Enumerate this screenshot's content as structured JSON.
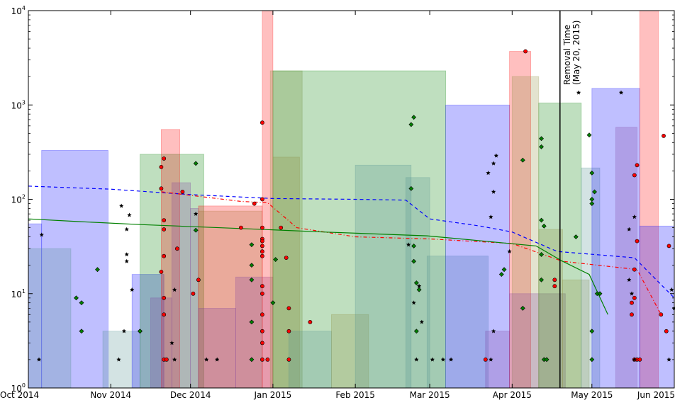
{
  "chart_data": {
    "type": "bar",
    "title": "",
    "xlabel": "",
    "ylabel": "",
    "yscale": "log",
    "ylim": [
      1,
      10000
    ],
    "xlim": [
      "2014-10-01",
      "2015-06-01"
    ],
    "grid": false,
    "y_ticks": [
      {
        "base": "10",
        "exp": "0",
        "value": 1
      },
      {
        "base": "10",
        "exp": "1",
        "value": 10
      },
      {
        "base": "10",
        "exp": "2",
        "value": 100
      },
      {
        "base": "10",
        "exp": "3",
        "value": 1000
      },
      {
        "base": "10",
        "exp": "4",
        "value": 10000
      }
    ],
    "x_ticks": [
      {
        "label": "Oct 2014",
        "date": "2014-10-01"
      },
      {
        "label": "Nov 2014",
        "date": "2014-11-01"
      },
      {
        "label": "Dec 2014",
        "date": "2014-12-01"
      },
      {
        "label": "Jan 2015",
        "date": "2015-01-01"
      },
      {
        "label": "Feb 2015",
        "date": "2015-02-01"
      },
      {
        "label": "Mar 2015",
        "date": "2015-03-01"
      },
      {
        "label": "Apr 2015",
        "date": "2015-04-01"
      },
      {
        "label": "May 2015",
        "date": "2015-05-01"
      },
      {
        "label": "Jun 2015",
        "date": "2015-06-01"
      }
    ],
    "annotation": {
      "date": "2015-04-19",
      "line1": "Removal Time",
      "line2": "(May 20, 2015)"
    },
    "colors": {
      "red": "#ff0000",
      "green": "#008000",
      "blue": "#0000ff",
      "teal": "#4f8f8f",
      "purple": "#7f3f9f",
      "olive": "#8f8f3f"
    },
    "bars": [
      {
        "color": "blue",
        "start": "2014-10-01",
        "end": "2014-10-06",
        "value": 55
      },
      {
        "color": "blue",
        "start": "2014-10-06",
        "end": "2014-10-31",
        "value": 330
      },
      {
        "color": "teal",
        "start": "2014-10-01",
        "end": "2014-10-17",
        "value": 30
      },
      {
        "color": "teal",
        "start": "2014-10-29",
        "end": "2014-11-12",
        "value": 4
      },
      {
        "color": "blue",
        "start": "2014-11-09",
        "end": "2014-11-21",
        "value": 16
      },
      {
        "color": "green",
        "start": "2014-11-12",
        "end": "2014-12-06",
        "value": 300
      },
      {
        "color": "red",
        "start": "2014-11-20",
        "end": "2014-11-27",
        "value": 550
      },
      {
        "color": "purple",
        "start": "2014-11-16",
        "end": "2014-11-24",
        "value": 9
      },
      {
        "color": "purple",
        "start": "2014-11-24",
        "end": "2014-12-01",
        "value": 150
      },
      {
        "color": "purple",
        "start": "2014-12-01",
        "end": "2014-12-04",
        "value": 80
      },
      {
        "color": "olive",
        "start": "2014-12-04",
        "end": "2014-12-28",
        "value": 75
      },
      {
        "color": "red",
        "start": "2014-12-04",
        "end": "2014-12-28",
        "value": 85
      },
      {
        "color": "purple",
        "start": "2014-12-04",
        "end": "2014-12-18",
        "value": 7
      },
      {
        "color": "purple",
        "start": "2014-12-18",
        "end": "2015-01-01",
        "value": 15
      },
      {
        "color": "red",
        "start": "2014-12-28",
        "end": "2015-01-01",
        "value": 10000
      },
      {
        "color": "olive",
        "start": "2014-12-31",
        "end": "2015-01-12",
        "value": 2300
      },
      {
        "color": "green",
        "start": "2015-01-01",
        "end": "2015-03-07",
        "value": 2300
      },
      {
        "color": "olive",
        "start": "2015-01-01",
        "end": "2015-01-11",
        "value": 280
      },
      {
        "color": "teal",
        "start": "2015-01-07",
        "end": "2015-01-23",
        "value": 4
      },
      {
        "color": "olive",
        "start": "2015-01-23",
        "end": "2015-02-06",
        "value": 6
      },
      {
        "color": "teal",
        "start": "2015-02-01",
        "end": "2015-02-22",
        "value": 230
      },
      {
        "color": "teal",
        "start": "2015-02-20",
        "end": "2015-03-01",
        "value": 170
      },
      {
        "color": "teal",
        "start": "2015-02-28",
        "end": "2015-03-23",
        "value": 25
      },
      {
        "color": "blue",
        "start": "2015-03-07",
        "end": "2015-03-31",
        "value": 1000
      },
      {
        "color": "purple",
        "start": "2015-03-22",
        "end": "2015-03-31",
        "value": 4
      },
      {
        "color": "red",
        "start": "2015-03-31",
        "end": "2015-04-08",
        "value": 3700
      },
      {
        "color": "olive",
        "start": "2015-04-01",
        "end": "2015-04-11",
        "value": 2000
      },
      {
        "color": "purple",
        "start": "2015-03-31",
        "end": "2015-04-21",
        "value": 10
      },
      {
        "color": "green",
        "start": "2015-04-11",
        "end": "2015-04-27",
        "value": 1050
      },
      {
        "color": "olive",
        "start": "2015-04-11",
        "end": "2015-04-20",
        "value": 48
      },
      {
        "color": "olive",
        "start": "2015-04-20",
        "end": "2015-04-30",
        "value": 14
      },
      {
        "color": "teal",
        "start": "2015-04-27",
        "end": "2015-05-04",
        "value": 215
      },
      {
        "color": "blue",
        "start": "2015-05-01",
        "end": "2015-05-19",
        "value": 1500
      },
      {
        "color": "purple",
        "start": "2015-05-10",
        "end": "2015-05-18",
        "value": 580
      },
      {
        "color": "red",
        "start": "2015-05-19",
        "end": "2015-05-26",
        "value": 10000
      },
      {
        "color": "blue",
        "start": "2015-05-19",
        "end": "2015-06-01",
        "value": 52
      }
    ],
    "series": [
      {
        "color": "blue",
        "style": "dashed",
        "points": [
          [
            "2014-10-01",
            138
          ],
          [
            "2014-11-01",
            128
          ],
          [
            "2014-12-01",
            112
          ],
          [
            "2015-01-01",
            102
          ],
          [
            "2015-02-01",
            100
          ],
          [
            "2015-02-20",
            98
          ],
          [
            "2015-03-01",
            62
          ],
          [
            "2015-03-20",
            52
          ],
          [
            "2015-04-01",
            45
          ],
          [
            "2015-04-18",
            28
          ],
          [
            "2015-05-17",
            24
          ],
          [
            "2015-06-01",
            9
          ]
        ]
      },
      {
        "color": "red",
        "style": "dashdot",
        "points": [
          [
            "2014-11-20",
            120
          ],
          [
            "2014-12-20",
            95
          ],
          [
            "2014-12-30",
            92
          ],
          [
            "2015-01-10",
            50
          ],
          [
            "2015-02-01",
            40
          ],
          [
            "2015-03-01",
            38
          ],
          [
            "2015-04-01",
            34
          ],
          [
            "2015-04-20",
            22
          ],
          [
            "2015-05-18",
            18
          ],
          [
            "2015-05-27",
            6
          ]
        ]
      },
      {
        "color": "green",
        "style": "solid",
        "points": [
          [
            "2014-10-01",
            62
          ],
          [
            "2014-10-20",
            58
          ],
          [
            "2014-11-12",
            54
          ],
          [
            "2014-12-20",
            49
          ],
          [
            "2015-01-20",
            45
          ],
          [
            "2015-02-28",
            41
          ],
          [
            "2015-04-10",
            32
          ],
          [
            "2015-04-20",
            22
          ],
          [
            "2015-04-30",
            16
          ],
          [
            "2015-05-07",
            6
          ]
        ]
      }
    ],
    "scatter": [
      {
        "color": "green",
        "marker": "diamond",
        "points": [
          [
            "2014-10-27",
            18
          ],
          [
            "2014-10-19",
            9
          ],
          [
            "2014-10-21",
            8
          ],
          [
            "2014-10-21",
            4
          ],
          [
            "2014-11-12",
            4
          ],
          [
            "2014-11-12",
            4
          ],
          [
            "2014-12-03",
            240
          ],
          [
            "2014-12-03",
            47
          ],
          [
            "2014-12-24",
            33
          ],
          [
            "2014-12-24",
            20
          ],
          [
            "2014-12-24",
            14
          ],
          [
            "2014-12-24",
            5
          ],
          [
            "2014-12-24",
            2
          ],
          [
            "2015-01-02",
            23
          ],
          [
            "2015-01-01",
            8
          ],
          [
            "2015-02-23",
            740
          ],
          [
            "2015-02-22",
            620
          ],
          [
            "2015-02-22",
            130
          ],
          [
            "2015-02-23",
            32
          ],
          [
            "2015-02-24",
            13
          ],
          [
            "2015-02-25",
            11
          ],
          [
            "2015-02-24",
            4
          ],
          [
            "2015-02-23",
            22
          ],
          [
            "2015-03-29",
            18
          ],
          [
            "2015-03-28",
            16
          ],
          [
            "2015-04-05",
            260
          ],
          [
            "2015-04-12",
            440
          ],
          [
            "2015-04-12",
            360
          ],
          [
            "2015-04-12",
            60
          ],
          [
            "2015-04-13",
            52
          ],
          [
            "2015-04-12",
            26
          ],
          [
            "2015-04-12",
            14
          ],
          [
            "2015-04-13",
            2
          ],
          [
            "2015-04-14",
            2
          ],
          [
            "2015-04-05",
            7
          ],
          [
            "2015-04-25",
            40
          ],
          [
            "2015-04-30",
            480
          ],
          [
            "2015-05-01",
            190
          ],
          [
            "2015-05-01",
            100
          ],
          [
            "2015-05-01",
            90
          ],
          [
            "2015-05-02",
            120
          ],
          [
            "2015-05-03",
            10
          ],
          [
            "2015-05-04",
            10
          ],
          [
            "2015-05-01",
            4
          ],
          [
            "2015-05-01",
            2
          ]
        ]
      },
      {
        "color": "red",
        "marker": "circle",
        "points": [
          [
            "2014-11-21",
            270
          ],
          [
            "2014-11-20",
            220
          ],
          [
            "2014-11-20",
            130
          ],
          [
            "2014-11-21",
            60
          ],
          [
            "2014-11-21",
            48
          ],
          [
            "2014-11-21",
            25
          ],
          [
            "2014-11-20",
            17
          ],
          [
            "2014-11-21",
            9
          ],
          [
            "2014-11-21",
            6
          ],
          [
            "2014-11-21",
            2
          ],
          [
            "2014-11-22",
            2
          ],
          [
            "2014-11-26",
            30
          ],
          [
            "2014-11-28",
            120
          ],
          [
            "2014-12-04",
            14
          ],
          [
            "2014-12-02",
            10
          ],
          [
            "2014-12-20",
            50
          ],
          [
            "2014-12-25",
            90
          ],
          [
            "2014-12-28",
            650
          ],
          [
            "2014-12-28",
            100
          ],
          [
            "2014-12-28",
            50
          ],
          [
            "2014-12-28",
            38
          ],
          [
            "2014-12-28",
            36
          ],
          [
            "2014-12-28",
            32
          ],
          [
            "2014-12-28",
            28
          ],
          [
            "2014-12-28",
            25
          ],
          [
            "2014-12-28",
            12
          ],
          [
            "2014-12-28",
            10
          ],
          [
            "2014-12-28",
            6
          ],
          [
            "2014-12-28",
            4
          ],
          [
            "2014-12-28",
            3
          ],
          [
            "2014-12-28",
            2
          ],
          [
            "2014-12-30",
            2
          ],
          [
            "2015-01-06",
            24
          ],
          [
            "2015-01-04",
            50
          ],
          [
            "2015-01-07",
            7
          ],
          [
            "2015-01-07",
            4
          ],
          [
            "2015-01-07",
            2
          ],
          [
            "2015-01-15",
            5
          ],
          [
            "2015-03-22",
            2
          ],
          [
            "2015-04-06",
            3700
          ],
          [
            "2015-04-17",
            14
          ],
          [
            "2015-04-17",
            12
          ],
          [
            "2015-05-18",
            230
          ],
          [
            "2015-05-17",
            180
          ],
          [
            "2015-05-18",
            36
          ],
          [
            "2015-05-17",
            18
          ],
          [
            "2015-05-17",
            9
          ],
          [
            "2015-05-16",
            8
          ],
          [
            "2015-05-16",
            6
          ],
          [
            "2015-05-18",
            2
          ],
          [
            "2015-05-17",
            2
          ],
          [
            "2015-05-19",
            2
          ],
          [
            "2015-05-28",
            470
          ],
          [
            "2015-05-30",
            32
          ],
          [
            "2015-05-27",
            6
          ],
          [
            "2015-05-29",
            4
          ]
        ]
      },
      {
        "color": "black",
        "marker": "star",
        "points": [
          [
            "2014-10-06",
            42
          ],
          [
            "2014-10-05",
            2
          ],
          [
            "2014-11-05",
            85
          ],
          [
            "2014-11-08",
            68
          ],
          [
            "2014-11-07",
            48
          ],
          [
            "2014-11-07",
            26
          ],
          [
            "2014-11-07",
            22
          ],
          [
            "2014-11-09",
            11
          ],
          [
            "2014-11-06",
            4
          ],
          [
            "2014-11-04",
            2
          ],
          [
            "2014-11-25",
            11
          ],
          [
            "2014-11-24",
            3
          ],
          [
            "2014-11-25",
            2
          ],
          [
            "2014-12-03",
            70
          ],
          [
            "2014-12-07",
            2
          ],
          [
            "2014-12-11",
            2
          ],
          [
            "2015-02-21",
            33
          ],
          [
            "2015-02-23",
            8
          ],
          [
            "2015-02-24",
            2
          ],
          [
            "2015-02-26",
            5
          ],
          [
            "2015-02-25",
            12
          ],
          [
            "2015-03-02",
            2
          ],
          [
            "2015-03-06",
            2
          ],
          [
            "2015-03-09",
            2
          ],
          [
            "2015-03-26",
            290
          ],
          [
            "2015-03-25",
            240
          ],
          [
            "2015-03-23",
            190
          ],
          [
            "2015-03-25",
            120
          ],
          [
            "2015-03-24",
            65
          ],
          [
            "2015-03-25",
            4
          ],
          [
            "2015-03-24",
            2
          ],
          [
            "2015-03-31",
            28
          ],
          [
            "2015-04-26",
            1350
          ],
          [
            "2015-05-12",
            1350
          ],
          [
            "2015-05-17",
            65
          ],
          [
            "2015-05-15",
            48
          ],
          [
            "2015-05-15",
            14
          ],
          [
            "2015-05-16",
            10
          ],
          [
            "2015-05-17",
            2
          ],
          [
            "2015-05-31",
            11
          ],
          [
            "2015-06-01",
            7
          ],
          [
            "2015-05-30",
            2
          ]
        ]
      }
    ]
  }
}
